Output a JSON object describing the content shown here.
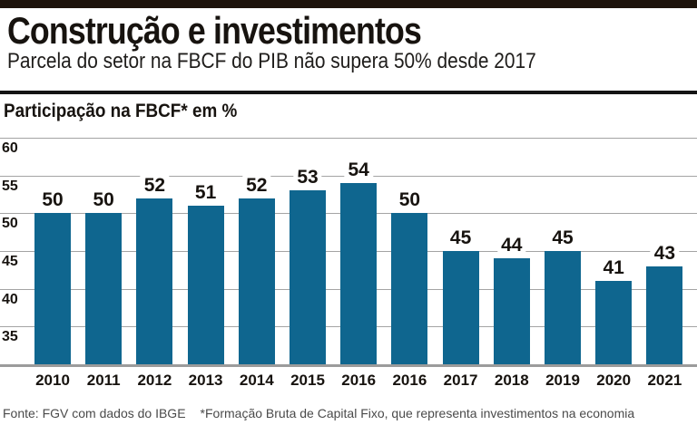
{
  "page": {
    "title": "Construção e investimentos",
    "subtitle": "Parcela do setor na FBCF do PIB não supera 50% desde 2017",
    "footer": {
      "source": "Fonte: FGV com dados do IBGE",
      "note": "*Formação Bruta de Capital Fixo, que representa investimentos na economia"
    }
  },
  "colors": {
    "bar": "#0f668f",
    "top_band": "#1e140c",
    "grid": "#a4a4a4",
    "axis": "#9b9b9b"
  },
  "chart_data": {
    "type": "bar",
    "title": "Participação na FBCF* em %",
    "categories": [
      "2010",
      "2011",
      "2012",
      "2013",
      "2014",
      "2015",
      "2016",
      "2016",
      "2017",
      "2018",
      "2019",
      "2020",
      "2021"
    ],
    "values": [
      50,
      50,
      52,
      51,
      52,
      53,
      54,
      50,
      45,
      44,
      45,
      41,
      43
    ],
    "xlabel": "",
    "ylabel": "Participação na FBCF* em %",
    "ylim": [
      30,
      60
    ],
    "yticks": [
      35,
      40,
      45,
      50,
      55,
      60
    ],
    "grid": true,
    "legend": false,
    "data_labels": true,
    "bar_color": "#0f668f"
  }
}
